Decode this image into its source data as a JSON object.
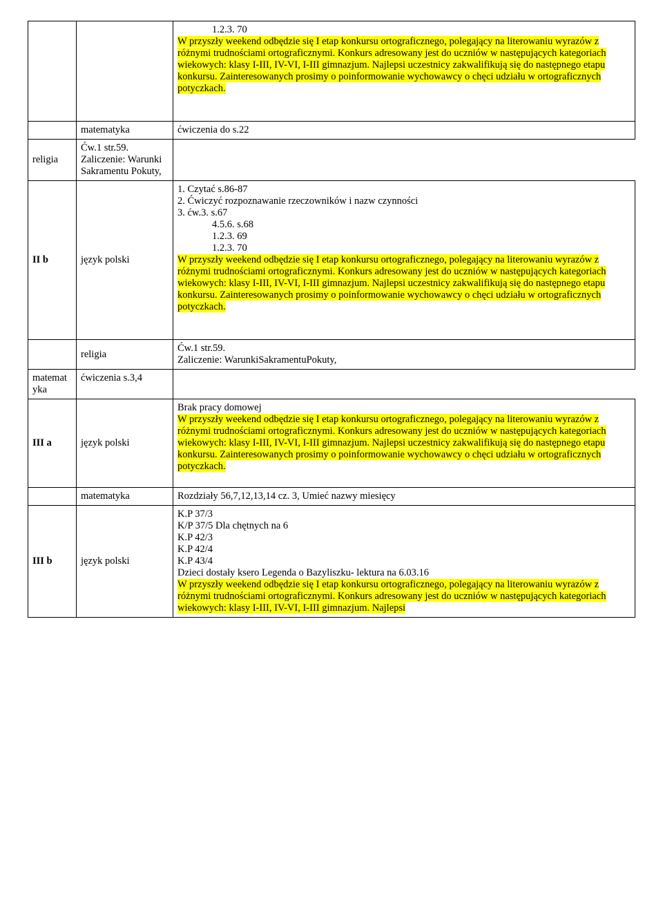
{
  "colors": {
    "highlight": "#ffff00",
    "text": "#000000",
    "border": "#000000",
    "background": "#ffffff"
  },
  "typography": {
    "font_family": "Times New Roman",
    "font_size_pt": 12
  },
  "rows": [
    {
      "group": "",
      "subject": "",
      "content": {
        "plain_pre": "",
        "indent_items": [
          {
            "text": "1.2.3.    70",
            "level": 1
          }
        ],
        "plain_mid": "",
        "highlighted": "W przyszły weekend odbędzie się I etap konkursu ortograficznego, polegający na literowaniu wyrazów z różnymi trudnościami ortograficznymi. Konkurs adresowany jest do uczniów w następujących kategoriach wiekowych: klasy I-III, IV-VI, I-III gimnazjum. Najlepsi uczestnicy zakwalifikują się do następnego etapu konkursu. Zainteresowanych prosimy o poinformowanie wychowawcy o chęci udziału w ortograficznych potyczkach.",
        "trailing_blank_lines": 2
      }
    },
    {
      "group": null,
      "subject": "matematyka",
      "content": {
        "plain_pre": "ćwiczenia do s.22"
      }
    },
    {
      "group": null,
      "subject": "religia",
      "content": {
        "plain_pre": "Ćw.1 str.59.\nZaliczenie: Warunki Sakramentu Pokuty,"
      }
    },
    {
      "group": "II b",
      "group_bold": true,
      "subject": "język polski",
      "content": {
        "plain_pre": "1. Czytać s.86-87\n2. Ćwiczyć rozpoznawanie rzeczowników i nazw czynności\n3. ćw.3. s.67",
        "indent_items": [
          {
            "text": "4.5.6. s.68",
            "level": 1
          },
          {
            "text": "1.2.3.    69",
            "level": 1
          },
          {
            "text": "1.2.3.    70",
            "level": 1
          }
        ],
        "highlighted": "W przyszły weekend odbędzie się I etap konkursu ortograficznego, polegający na literowaniu wyrazów z różnymi trudnościami ortograficznymi. Konkurs adresowany jest do uczniów w następujących kategoriach wiekowych: klasy I-III, IV-VI, I-III gimnazjum. Najlepsi uczestnicy zakwalifikują się do następnego etapu konkursu. Zainteresowanych prosimy o poinformowanie wychowawcy o chęci udziału w ortograficznych potyczkach.",
        "trailing_blank_lines": 2
      }
    },
    {
      "group": null,
      "subject": "religia",
      "content": {
        "plain_pre": "Ćw.1 str.59.\nZaliczenie: WarunkiSakramentuPokuty,"
      }
    },
    {
      "group": null,
      "subject": "matematyka",
      "content": {
        "plain_pre": "ćwiczenia s.3,4"
      }
    },
    {
      "group": "III a",
      "group_bold": true,
      "subject": "język polski",
      "content": {
        "plain_pre": "Brak pracy domowej",
        "highlighted": "W przyszły weekend odbędzie się I etap konkursu ortograficznego, polegający na literowaniu wyrazów z różnymi trudnościami ortograficznymi. Konkurs adresowany jest do uczniów w następujących kategoriach wiekowych: klasy I-III, IV-VI, I-III gimnazjum. Najlepsi uczestnicy zakwalifikują się do następnego etapu konkursu. Zainteresowanych prosimy o poinformowanie wychowawcy o chęci udziału w ortograficznych potyczkach.",
        "trailing_blank_lines": 1
      }
    },
    {
      "group": "",
      "subject": "matematyka",
      "content": {
        "plain_pre": "Rozdziały 56,7,12,13,14 cz. 3, Umieć nazwy miesięcy"
      }
    },
    {
      "group": "III b",
      "group_bold": true,
      "subject": "język polski",
      "content": {
        "plain_pre": "K.P 37/3\nK/P 37/5 Dla chętnych na 6\nK.P 42/3\nK.P 42/4\nK.P 43/4\nDzieci dostały ksero Legenda o Bazyliszku- lektura na 6.03.16",
        "highlighted": "W przyszły weekend odbędzie się I etap konkursu ortograficznego, polegający na literowaniu wyrazów z różnymi trudnościami ortograficznymi. Konkurs adresowany jest do uczniów w następujących kategoriach wiekowych: klasy I-III, IV-VI, I-III gimnazjum. Najlepsi"
      }
    }
  ],
  "row_merges": [
    {
      "start": 1,
      "span": 2
    },
    {
      "start": 4,
      "span": 2
    }
  ]
}
